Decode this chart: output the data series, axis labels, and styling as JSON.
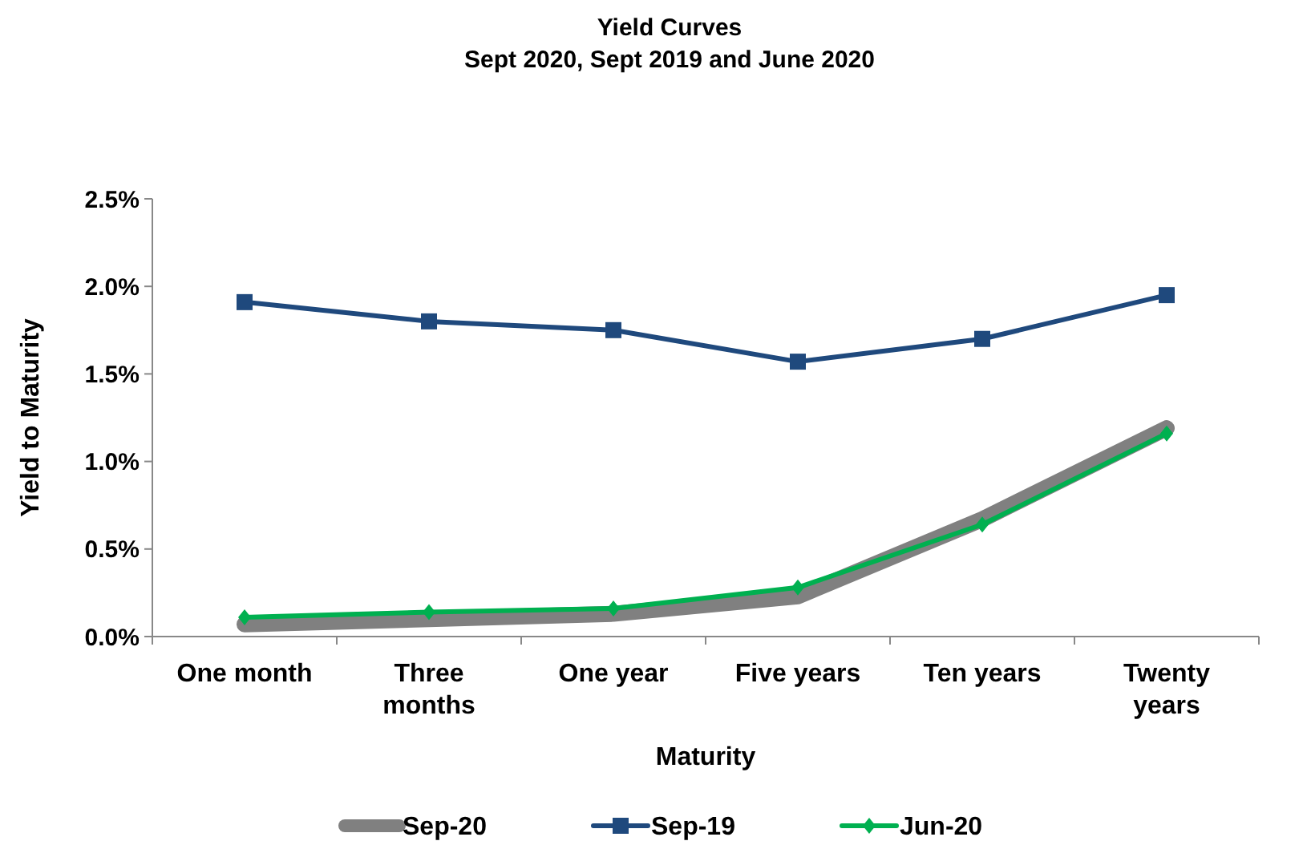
{
  "chart_data": {
    "type": "line",
    "title": "Yield Curves",
    "subtitle": "Sept 2020, Sept 2019 and June 2020",
    "xlabel": "Maturity",
    "ylabel": "Yield to Maturity",
    "categories": [
      "One month",
      "Three months",
      "One year",
      "Five years",
      "Ten years",
      "Twenty years"
    ],
    "series": [
      {
        "name": "Sep-20",
        "color": "#808080",
        "marker": "none",
        "values": [
          0.07,
          0.1,
          0.13,
          0.23,
          0.67,
          1.19
        ]
      },
      {
        "name": "Sep-19",
        "color": "#1f497d",
        "marker": "square",
        "values": [
          1.91,
          1.8,
          1.75,
          1.57,
          1.7,
          1.95
        ]
      },
      {
        "name": "Jun-20",
        "color": "#00b050",
        "marker": "diamond",
        "values": [
          0.11,
          0.14,
          0.16,
          0.28,
          0.64,
          1.16
        ]
      }
    ],
    "ylim": [
      0,
      2.5
    ],
    "yticks": [
      {
        "value": 0,
        "label": "0.0%"
      },
      {
        "value": 0.5,
        "label": "0.5%"
      },
      {
        "value": 1,
        "label": "1.0%"
      },
      {
        "value": 1.5,
        "label": "1.5%"
      },
      {
        "value": 2,
        "label": "2.0%"
      },
      {
        "value": 2.5,
        "label": "2.5%"
      }
    ],
    "grid": false,
    "legend": "bottom"
  }
}
